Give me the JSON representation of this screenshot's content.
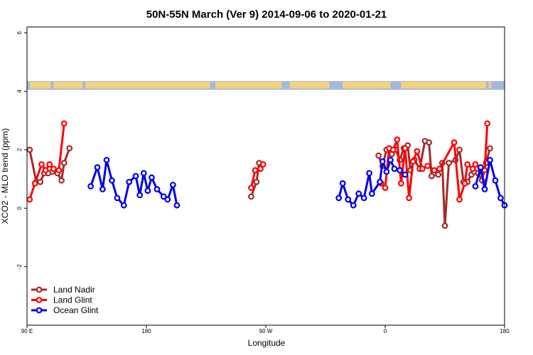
{
  "chart_data": {
    "type": "line",
    "title": "50N-55N March (Ver 9)   2014-09-06 to 2020-01-21",
    "xlabel": "Longitude",
    "ylabel": "XCO2 - MLO trend (ppm)",
    "xlim": [
      90,
      450
    ],
    "ylim": [
      -4,
      6.2
    ],
    "x_ticks": [
      {
        "value": 90,
        "label": "90 E"
      },
      {
        "value": 180,
        "label": "180"
      },
      {
        "value": 270,
        "label": "90 W"
      },
      {
        "value": 360,
        "label": "0"
      },
      {
        "value": 450,
        "label": "180"
      }
    ],
    "y_ticks": [
      {
        "value": -2,
        "label": "-2"
      },
      {
        "value": 0,
        "label": "0"
      },
      {
        "value": 2,
        "label": "2"
      },
      {
        "value": 4,
        "label": "4"
      },
      {
        "value": 6,
        "label": "6"
      }
    ],
    "grid": false,
    "legend_position": "bottom-left",
    "land_strip": {
      "ymin": 4.05,
      "ymax": 4.35,
      "ocean_color": "#a4b8dc",
      "land_color": "#f5d37c"
    },
    "series": [
      {
        "name": "Land Nadir",
        "color": "#a52a2a",
        "segments": [
          [
            [
              92,
              2.0
            ],
            [
              97,
              0.9
            ],
            [
              100,
              0.9
            ],
            [
              103,
              1.2
            ],
            [
              106,
              1.2
            ],
            [
              109,
              1.25
            ],
            [
              113,
              1.2
            ],
            [
              116,
              0.95
            ],
            [
              118,
              1.55
            ],
            [
              122,
              2.05
            ]
          ],
          [
            [
              259,
              0.4
            ],
            [
              263,
              0.9
            ],
            [
              265,
              1.55
            ]
          ],
          [
            [
              355,
              1.8
            ],
            [
              358,
              1.45
            ],
            [
              361,
              2.0
            ],
            [
              365,
              1.85
            ],
            [
              368,
              2.0
            ],
            [
              371,
              1.65
            ],
            [
              374,
              2.05
            ],
            [
              377,
              2.15
            ],
            [
              379,
              1.3
            ],
            [
              382,
              1.65
            ],
            [
              386,
              1.35
            ],
            [
              390,
              2.3
            ],
            [
              393,
              2.25
            ],
            [
              395,
              1.1
            ],
            [
              400,
              1.15
            ],
            [
              403,
              1.55
            ],
            [
              405,
              -0.6
            ],
            [
              408,
              1.55
            ],
            [
              413,
              1.65
            ],
            [
              416,
              2.0
            ],
            [
              419,
              0.9
            ],
            [
              422,
              0.9
            ],
            [
              425,
              1.15
            ],
            [
              427,
              1.25
            ],
            [
              430,
              1.2
            ],
            [
              433,
              0.95
            ],
            [
              436,
              1.55
            ],
            [
              439,
              2.05
            ]
          ]
        ]
      },
      {
        "name": "Land Glint",
        "color": "#ff0000",
        "segments": [
          [
            [
              92,
              0.3
            ],
            [
              96,
              0.85
            ],
            [
              101,
              1.5
            ],
            [
              104,
              1.3
            ],
            [
              107,
              1.5
            ],
            [
              110,
              1.35
            ],
            [
              114,
              1.3
            ],
            [
              118,
              2.9
            ]
          ],
          [
            [
              259,
              0.7
            ],
            [
              262,
              1.3
            ],
            [
              266,
              1.35
            ],
            [
              268,
              1.5
            ]
          ],
          [
            [
              357,
              0.85
            ],
            [
              360,
              0.7
            ],
            [
              363,
              2.05
            ],
            [
              366,
              2.0
            ],
            [
              369,
              2.35
            ],
            [
              372,
              0.85
            ],
            [
              375,
              2.05
            ],
            [
              378,
              0.35
            ],
            [
              381,
              1.6
            ],
            [
              384,
              1.95
            ],
            [
              388,
              1.35
            ],
            [
              392,
              1.45
            ],
            [
              397,
              1.3
            ],
            [
              401,
              1.35
            ],
            [
              412,
              2.25
            ],
            [
              416,
              0.3
            ],
            [
              420,
              0.85
            ],
            [
              422,
              1.5
            ],
            [
              426,
              1.35
            ],
            [
              428,
              1.5
            ],
            [
              432,
              1.35
            ],
            [
              435,
              1.3
            ],
            [
              437,
              2.9
            ]
          ]
        ]
      },
      {
        "name": "Ocean Glint",
        "color": "#0000ee",
        "segments": [
          [
            [
              138,
              0.75
            ],
            [
              143,
              1.4
            ],
            [
              147,
              0.65
            ],
            [
              150,
              1.65
            ],
            [
              154,
              0.95
            ],
            [
              158,
              0.35
            ],
            [
              163,
              0.1
            ],
            [
              167,
              0.9
            ],
            [
              172,
              1.1
            ],
            [
              175,
              0.45
            ],
            [
              178,
              1.2
            ],
            [
              181,
              0.6
            ],
            [
              184,
              1.05
            ],
            [
              188,
              0.65
            ],
            [
              193,
              0.4
            ],
            [
              196,
              0.3
            ],
            [
              200,
              0.8
            ],
            [
              203,
              0.1
            ]
          ],
          [
            [
              325,
              0.35
            ],
            [
              328,
              0.85
            ],
            [
              332,
              0.3
            ],
            [
              336,
              0.1
            ],
            [
              340,
              0.5
            ],
            [
              344,
              0.35
            ],
            [
              348,
              1.2
            ],
            [
              350,
              0.5
            ],
            [
              356,
              0.9
            ],
            [
              358,
              1.6
            ],
            [
              361,
              1.25
            ],
            [
              364,
              1.65
            ],
            [
              367,
              1.35
            ],
            [
              371,
              1.3
            ],
            [
              375,
              1.15
            ]
          ],
          [
            [
              428,
              0.75
            ],
            [
              432,
              1.4
            ],
            [
              435,
              0.65
            ],
            [
              439,
              1.65
            ],
            [
              443,
              0.95
            ],
            [
              447,
              0.35
            ],
            [
              450,
              0.1
            ]
          ]
        ]
      }
    ]
  }
}
